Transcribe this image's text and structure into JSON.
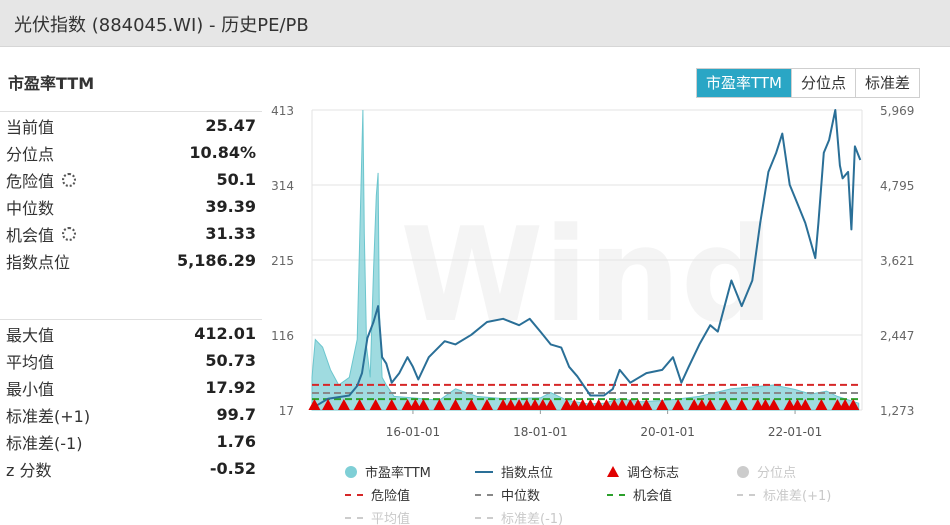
{
  "window": {
    "title": "光伏指数 (884045.WI) - 历史PE/PB"
  },
  "panel": {
    "title": "市盈率TTM"
  },
  "tabs": [
    {
      "label": "市盈率TTM",
      "active": true
    },
    {
      "label": "分位点",
      "active": false
    },
    {
      "label": "标准差",
      "active": false
    }
  ],
  "stats_top": [
    {
      "label": "当前值",
      "value": "25.47",
      "gear": false
    },
    {
      "label": "分位点",
      "value": "10.84%",
      "gear": false
    },
    {
      "label": "危险值",
      "value": "50.1",
      "gear": true
    },
    {
      "label": "中位数",
      "value": "39.39",
      "gear": false
    },
    {
      "label": "机会值",
      "value": "31.33",
      "gear": true
    },
    {
      "label": "指数点位",
      "value": "5,186.29",
      "gear": false
    }
  ],
  "stats_bottom": [
    {
      "label": "最大值",
      "value": "412.01"
    },
    {
      "label": "平均值",
      "value": "50.73"
    },
    {
      "label": "最小值",
      "value": "17.92"
    },
    {
      "label": "标准差(+1)",
      "value": "99.7"
    },
    {
      "label": "标准差(-1)",
      "value": "1.76"
    },
    {
      "label": "z 分数",
      "value": "-0.52"
    }
  ],
  "watermark": "Wind",
  "legend": [
    {
      "label": "市盈率TTM",
      "symbol": "dot",
      "color": "#7fcfd6",
      "muted": false
    },
    {
      "label": "指数点位",
      "symbol": "line",
      "color": "#2a6f97",
      "muted": false
    },
    {
      "label": "调仓标志",
      "symbol": "triangle",
      "color": "#e00000",
      "muted": false
    },
    {
      "label": "分位点",
      "symbol": "dot",
      "color": "#cccccc",
      "muted": true
    },
    {
      "label": "危险值",
      "symbol": "dash",
      "color": "#d62728",
      "muted": false
    },
    {
      "label": "中位数",
      "symbol": "dash",
      "color": "#888888",
      "muted": false
    },
    {
      "label": "机会值",
      "symbol": "dash",
      "color": "#2ca02c",
      "muted": false
    },
    {
      "label": "标准差(+1)",
      "symbol": "dash",
      "color": "#cccccc",
      "muted": true
    },
    {
      "label": "平均值",
      "symbol": "dash",
      "color": "#cccccc",
      "muted": true
    },
    {
      "label": "标准差(-1)",
      "symbol": "dash",
      "color": "#cccccc",
      "muted": true
    }
  ],
  "chart_data": {
    "type": "area",
    "x_ticks": [
      "16-01-01",
      "18-01-01",
      "20-01-01",
      "22-01-01"
    ],
    "x_range": [
      "2014-06-01",
      "2023-01-20"
    ],
    "y_left": {
      "ticks": [
        "17",
        "116",
        "215",
        "314",
        "413"
      ],
      "range": [
        17,
        413
      ]
    },
    "y_right": {
      "ticks": [
        "1,273",
        "2,447",
        "3,621",
        "4,795",
        "5,969"
      ],
      "range": [
        1273,
        5969
      ]
    },
    "grid": true,
    "legend_position": "bottom",
    "reference_lines": [
      {
        "name": "危险值",
        "value": 50.1,
        "color": "#d62728"
      },
      {
        "name": "中位数",
        "value": 39.39,
        "color": "#888888"
      },
      {
        "name": "机会值",
        "value": 31.33,
        "color": "#2ca02c"
      }
    ],
    "series": [
      {
        "name": "市盈率TTM",
        "axis": "left",
        "style": "area",
        "color": "#7fcfd6",
        "points": [
          [
            "2014-06-01",
            60
          ],
          [
            "2014-06-20",
            110
          ],
          [
            "2014-08-01",
            100
          ],
          [
            "2014-09-15",
            70
          ],
          [
            "2014-11-01",
            50
          ],
          [
            "2015-01-01",
            60
          ],
          [
            "2015-02-15",
            110
          ],
          [
            "2015-03-20",
            413
          ],
          [
            "2015-03-28",
            250
          ],
          [
            "2015-04-10",
            100
          ],
          [
            "2015-05-01",
            60
          ],
          [
            "2015-05-20",
            200
          ],
          [
            "2015-06-05",
            300
          ],
          [
            "2015-06-15",
            330
          ],
          [
            "2015-06-22",
            150
          ],
          [
            "2015-07-08",
            60
          ],
          [
            "2015-08-01",
            50
          ],
          [
            "2015-09-15",
            35
          ],
          [
            "2016-01-01",
            33
          ],
          [
            "2016-06-01",
            30
          ],
          [
            "2016-09-01",
            45
          ],
          [
            "2017-01-01",
            35
          ],
          [
            "2017-06-01",
            32
          ],
          [
            "2018-01-01",
            33
          ],
          [
            "2018-03-01",
            40
          ],
          [
            "2018-06-01",
            30
          ],
          [
            "2018-10-01",
            25
          ],
          [
            "2019-01-01",
            26
          ],
          [
            "2019-04-01",
            32
          ],
          [
            "2019-08-01",
            28
          ],
          [
            "2020-01-01",
            30
          ],
          [
            "2020-07-01",
            35
          ],
          [
            "2021-01-01",
            45
          ],
          [
            "2021-06-01",
            48
          ],
          [
            "2021-09-01",
            50
          ],
          [
            "2022-01-01",
            44
          ],
          [
            "2022-04-01",
            38
          ],
          [
            "2022-07-01",
            42
          ],
          [
            "2022-09-01",
            35
          ],
          [
            "2023-01-01",
            26
          ]
        ]
      },
      {
        "name": "指数点位",
        "axis": "right",
        "style": "line",
        "color": "#2a6f97",
        "points": [
          [
            "2014-06-01",
            1300
          ],
          [
            "2014-09-01",
            1450
          ],
          [
            "2015-01-01",
            1500
          ],
          [
            "2015-02-15",
            1650
          ],
          [
            "2015-03-15",
            1850
          ],
          [
            "2015-04-15",
            2400
          ],
          [
            "2015-05-20",
            2650
          ],
          [
            "2015-06-15",
            2900
          ],
          [
            "2015-07-08",
            2100
          ],
          [
            "2015-08-01",
            2000
          ],
          [
            "2015-09-01",
            1700
          ],
          [
            "2015-10-15",
            1850
          ],
          [
            "2015-12-01",
            2100
          ],
          [
            "2016-01-01",
            1950
          ],
          [
            "2016-02-01",
            1750
          ],
          [
            "2016-04-01",
            2100
          ],
          [
            "2016-07-01",
            2350
          ],
          [
            "2016-09-01",
            2300
          ],
          [
            "2016-12-01",
            2450
          ],
          [
            "2017-03-01",
            2650
          ],
          [
            "2017-06-01",
            2700
          ],
          [
            "2017-09-01",
            2600
          ],
          [
            "2017-11-01",
            2700
          ],
          [
            "2018-01-01",
            2500
          ],
          [
            "2018-03-01",
            2300
          ],
          [
            "2018-05-01",
            2250
          ],
          [
            "2018-06-15",
            1950
          ],
          [
            "2018-08-01",
            1800
          ],
          [
            "2018-10-15",
            1500
          ],
          [
            "2019-01-01",
            1500
          ],
          [
            "2019-02-20",
            1600
          ],
          [
            "2019-04-01",
            1900
          ],
          [
            "2019-06-01",
            1700
          ],
          [
            "2019-09-01",
            1850
          ],
          [
            "2019-12-01",
            1900
          ],
          [
            "2020-02-01",
            2100
          ],
          [
            "2020-03-20",
            1700
          ],
          [
            "2020-05-01",
            1950
          ],
          [
            "2020-07-01",
            2300
          ],
          [
            "2020-09-01",
            2600
          ],
          [
            "2020-10-15",
            2500
          ],
          [
            "2021-01-01",
            3300
          ],
          [
            "2021-03-01",
            2900
          ],
          [
            "2021-05-01",
            3300
          ],
          [
            "2021-06-15",
            4200
          ],
          [
            "2021-08-01",
            5000
          ],
          [
            "2021-09-15",
            5300
          ],
          [
            "2021-10-20",
            5600
          ],
          [
            "2021-12-01",
            4800
          ],
          [
            "2022-01-15",
            4500
          ],
          [
            "2022-03-01",
            4200
          ],
          [
            "2022-04-27",
            3650
          ],
          [
            "2022-05-15",
            4200
          ],
          [
            "2022-06-15",
            5300
          ],
          [
            "2022-07-15",
            5500
          ],
          [
            "2022-08-20",
            5969
          ],
          [
            "2022-09-15",
            5100
          ],
          [
            "2022-10-01",
            4900
          ],
          [
            "2022-11-01",
            5000
          ],
          [
            "2022-11-20",
            4100
          ],
          [
            "2022-12-10",
            5400
          ],
          [
            "2023-01-10",
            5186
          ]
        ]
      },
      {
        "name": "调仓标志",
        "axis": "left",
        "style": "marker",
        "color": "#e00000",
        "dates": [
          "2014-06-15",
          "2014-09-01",
          "2014-12-01",
          "2015-03-01",
          "2015-06-01",
          "2015-09-01",
          "2015-12-01",
          "2016-01-15",
          "2016-03-01",
          "2016-06-01",
          "2016-09-01",
          "2016-12-01",
          "2017-03-01",
          "2017-06-01",
          "2017-07-15",
          "2017-09-01",
          "2017-10-15",
          "2017-12-01",
          "2018-01-15",
          "2018-03-01",
          "2018-06-01",
          "2018-07-15",
          "2018-09-01",
          "2018-10-15",
          "2018-12-01",
          "2019-01-15",
          "2019-03-01",
          "2019-04-15",
          "2019-06-01",
          "2019-07-15",
          "2019-09-01",
          "2019-12-01",
          "2020-03-01",
          "2020-06-01",
          "2020-07-15",
          "2020-09-01",
          "2020-12-01",
          "2021-03-01",
          "2021-06-01",
          "2021-07-15",
          "2021-09-01",
          "2021-12-01",
          "2022-01-15",
          "2022-03-01",
          "2022-06-01",
          "2022-09-01",
          "2022-10-15",
          "2022-12-01"
        ]
      }
    ]
  }
}
